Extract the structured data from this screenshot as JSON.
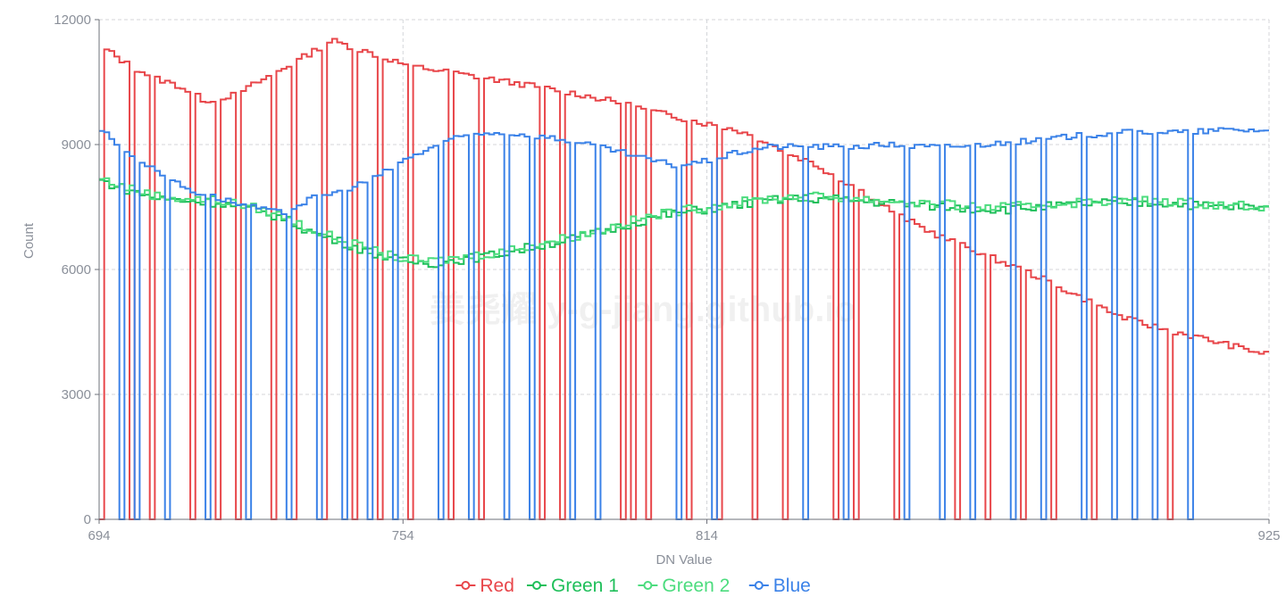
{
  "chart_data": {
    "type": "line",
    "xlabel": "DN Value",
    "ylabel": "Count",
    "xlim": [
      694,
      925
    ],
    "ylim": [
      0,
      12000
    ],
    "x_ticks": [
      694,
      754,
      814,
      925
    ],
    "y_ticks": [
      0,
      3000,
      6000,
      9000,
      12000
    ],
    "grid": true,
    "legend": "bottom-center",
    "watermark": "姜尧耀 y-g-jiang.github.io",
    "series": [
      {
        "name": "Red",
        "color": "#e8464a",
        "anchors": [
          [
            694,
            11400
          ],
          [
            700,
            10900
          ],
          [
            705,
            10600
          ],
          [
            710,
            10400
          ],
          [
            715,
            10050
          ],
          [
            721,
            10200
          ],
          [
            727,
            10600
          ],
          [
            733,
            11000
          ],
          [
            740,
            11500
          ],
          [
            745,
            11300
          ],
          [
            750,
            11100
          ],
          [
            755,
            10900
          ],
          [
            765,
            10700
          ],
          [
            775,
            10500
          ],
          [
            785,
            10300
          ],
          [
            795,
            10050
          ],
          [
            805,
            9750
          ],
          [
            814,
            9500
          ],
          [
            820,
            9350
          ],
          [
            825,
            9100
          ],
          [
            830,
            8800
          ],
          [
            835,
            8550
          ],
          [
            840,
            8200
          ],
          [
            845,
            7850
          ],
          [
            850,
            7450
          ],
          [
            855,
            7100
          ],
          [
            860,
            6800
          ],
          [
            865,
            6550
          ],
          [
            870,
            6300
          ],
          [
            875,
            6050
          ],
          [
            880,
            5800
          ],
          [
            885,
            5500
          ],
          [
            890,
            5200
          ],
          [
            895,
            4900
          ],
          [
            900,
            4700
          ],
          [
            905,
            4550
          ],
          [
            910,
            4400
          ],
          [
            915,
            4250
          ],
          [
            920,
            4100
          ],
          [
            925,
            3950
          ]
        ],
        "zero_bins": [
          694,
          700,
          704,
          712,
          717,
          721,
          728,
          732,
          738,
          744,
          749,
          755,
          763,
          769,
          781,
          785,
          797,
          799,
          802,
          810,
          816,
          823,
          829,
          839,
          843,
          851,
          863,
          869,
          876,
          882,
          890,
          905
        ]
      },
      {
        "name": "Green 1",
        "color": "#1fbf5a",
        "anchors": [
          [
            694,
            8150
          ],
          [
            700,
            7900
          ],
          [
            706,
            7700
          ],
          [
            712,
            7650
          ],
          [
            718,
            7600
          ],
          [
            724,
            7450
          ],
          [
            730,
            7250
          ],
          [
            736,
            6900
          ],
          [
            742,
            6650
          ],
          [
            748,
            6400
          ],
          [
            754,
            6200
          ],
          [
            760,
            6150
          ],
          [
            766,
            6250
          ],
          [
            772,
            6350
          ],
          [
            778,
            6500
          ],
          [
            784,
            6650
          ],
          [
            790,
            6800
          ],
          [
            796,
            7000
          ],
          [
            802,
            7200
          ],
          [
            808,
            7350
          ],
          [
            814,
            7450
          ],
          [
            820,
            7550
          ],
          [
            826,
            7650
          ],
          [
            832,
            7700
          ],
          [
            838,
            7700
          ],
          [
            844,
            7650
          ],
          [
            850,
            7600
          ],
          [
            856,
            7550
          ],
          [
            862,
            7500
          ],
          [
            868,
            7450
          ],
          [
            874,
            7450
          ],
          [
            880,
            7500
          ],
          [
            886,
            7550
          ],
          [
            892,
            7600
          ],
          [
            898,
            7600
          ],
          [
            904,
            7600
          ],
          [
            910,
            7550
          ],
          [
            916,
            7500
          ],
          [
            920,
            7500
          ],
          [
            925,
            7450
          ]
        ]
      },
      {
        "name": "Green 2",
        "color": "#4cdc7e",
        "anchors": [
          [
            694,
            8200
          ],
          [
            700,
            7950
          ],
          [
            706,
            7750
          ],
          [
            712,
            7700
          ],
          [
            718,
            7650
          ],
          [
            724,
            7500
          ],
          [
            730,
            7300
          ],
          [
            736,
            6950
          ],
          [
            742,
            6700
          ],
          [
            748,
            6450
          ],
          [
            754,
            6250
          ],
          [
            760,
            6200
          ],
          [
            766,
            6300
          ],
          [
            772,
            6400
          ],
          [
            778,
            6550
          ],
          [
            784,
            6700
          ],
          [
            790,
            6850
          ],
          [
            796,
            7050
          ],
          [
            802,
            7250
          ],
          [
            808,
            7400
          ],
          [
            814,
            7500
          ],
          [
            820,
            7600
          ],
          [
            826,
            7700
          ],
          [
            832,
            7750
          ],
          [
            838,
            7750
          ],
          [
            844,
            7700
          ],
          [
            850,
            7650
          ],
          [
            856,
            7600
          ],
          [
            862,
            7550
          ],
          [
            868,
            7500
          ],
          [
            874,
            7500
          ],
          [
            880,
            7550
          ],
          [
            886,
            7600
          ],
          [
            892,
            7650
          ],
          [
            898,
            7650
          ],
          [
            904,
            7650
          ],
          [
            910,
            7600
          ],
          [
            916,
            7550
          ],
          [
            920,
            7550
          ],
          [
            925,
            7500
          ]
        ]
      },
      {
        "name": "Blue",
        "color": "#3b82e8",
        "anchors": [
          [
            694,
            9400
          ],
          [
            700,
            8800
          ],
          [
            706,
            8350
          ],
          [
            712,
            7900
          ],
          [
            718,
            7700
          ],
          [
            724,
            7500
          ],
          [
            730,
            7350
          ],
          [
            736,
            7700
          ],
          [
            742,
            7900
          ],
          [
            748,
            8150
          ],
          [
            754,
            8600
          ],
          [
            760,
            8950
          ],
          [
            766,
            9200
          ],
          [
            772,
            9300
          ],
          [
            778,
            9250
          ],
          [
            784,
            9150
          ],
          [
            790,
            9000
          ],
          [
            796,
            8850
          ],
          [
            802,
            8650
          ],
          [
            808,
            8500
          ],
          [
            814,
            8600
          ],
          [
            820,
            8800
          ],
          [
            826,
            8950
          ],
          [
            832,
            8950
          ],
          [
            838,
            8950
          ],
          [
            844,
            8950
          ],
          [
            850,
            9000
          ],
          [
            856,
            8950
          ],
          [
            862,
            8950
          ],
          [
            868,
            9000
          ],
          [
            874,
            9050
          ],
          [
            880,
            9100
          ],
          [
            886,
            9200
          ],
          [
            892,
            9250
          ],
          [
            898,
            9300
          ],
          [
            904,
            9300
          ],
          [
            910,
            9300
          ],
          [
            916,
            9350
          ],
          [
            920,
            9350
          ],
          [
            925,
            9350
          ]
        ],
        "zero_bins": [
          698,
          701,
          707,
          715,
          723,
          731,
          737,
          742,
          747,
          752,
          761,
          767,
          774,
          779,
          787,
          792,
          808,
          815,
          833,
          841,
          853,
          860,
          866,
          874,
          880,
          888,
          894,
          898,
          902,
          909
        ]
      }
    ]
  }
}
